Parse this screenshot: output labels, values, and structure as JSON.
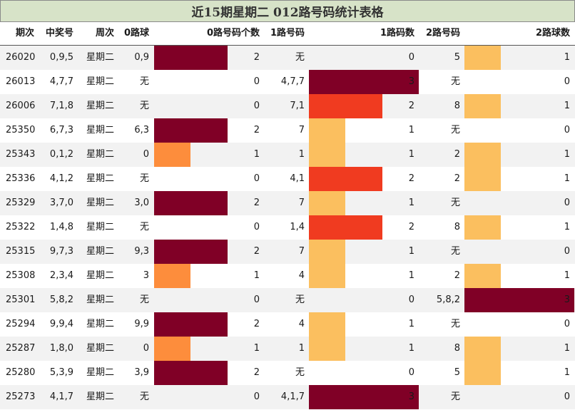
{
  "title": "近15期星期二 012路号码统计表格",
  "headers": [
    "期次",
    "中奖号",
    "周次",
    "0路球",
    "0路号码个数",
    "1路号码",
    "1路码数",
    "2路号码",
    "2路球数"
  ],
  "colors": {
    "count1": "#fbbf5f",
    "count1_orange": "#fd8d3c",
    "count2": "#f03b20",
    "count3": "#800026"
  },
  "chart_data": {
    "type": "table",
    "title": "近15期星期二 012路号码统计表格",
    "columns": [
      "期次",
      "中奖号",
      "周次",
      "0路球",
      "0路号码个数",
      "1路号码",
      "1路码数",
      "2路号码",
      "2路球数"
    ],
    "rows": [
      {
        "period": "26020",
        "numbers": "0,9,5",
        "weekday": "星期二",
        "road0": "0,9",
        "road0_count": 2,
        "road1": "无",
        "road1_count": 0,
        "road2": "5",
        "road2_count": 1
      },
      {
        "period": "26013",
        "numbers": "4,7,7",
        "weekday": "星期二",
        "road0": "无",
        "road0_count": 0,
        "road1": "4,7,7",
        "road1_count": 3,
        "road2": "无",
        "road2_count": 0
      },
      {
        "period": "26006",
        "numbers": "7,1,8",
        "weekday": "星期二",
        "road0": "无",
        "road0_count": 0,
        "road1": "7,1",
        "road1_count": 2,
        "road2": "8",
        "road2_count": 1
      },
      {
        "period": "25350",
        "numbers": "6,7,3",
        "weekday": "星期二",
        "road0": "6,3",
        "road0_count": 2,
        "road1": "7",
        "road1_count": 1,
        "road2": "无",
        "road2_count": 0
      },
      {
        "period": "25343",
        "numbers": "0,1,2",
        "weekday": "星期二",
        "road0": "0",
        "road0_count": 1,
        "road1": "1",
        "road1_count": 1,
        "road2": "2",
        "road2_count": 1
      },
      {
        "period": "25336",
        "numbers": "4,1,2",
        "weekday": "星期二",
        "road0": "无",
        "road0_count": 0,
        "road1": "4,1",
        "road1_count": 2,
        "road2": "2",
        "road2_count": 1
      },
      {
        "period": "25329",
        "numbers": "3,7,0",
        "weekday": "星期二",
        "road0": "3,0",
        "road0_count": 2,
        "road1": "7",
        "road1_count": 1,
        "road2": "无",
        "road2_count": 0
      },
      {
        "period": "25322",
        "numbers": "1,4,8",
        "weekday": "星期二",
        "road0": "无",
        "road0_count": 0,
        "road1": "1,4",
        "road1_count": 2,
        "road2": "8",
        "road2_count": 1
      },
      {
        "period": "25315",
        "numbers": "9,7,3",
        "weekday": "星期二",
        "road0": "9,3",
        "road0_count": 2,
        "road1": "7",
        "road1_count": 1,
        "road2": "无",
        "road2_count": 0
      },
      {
        "period": "25308",
        "numbers": "2,3,4",
        "weekday": "星期二",
        "road0": "3",
        "road0_count": 1,
        "road1": "4",
        "road1_count": 1,
        "road2": "2",
        "road2_count": 1
      },
      {
        "period": "25301",
        "numbers": "5,8,2",
        "weekday": "星期二",
        "road0": "无",
        "road0_count": 0,
        "road1": "无",
        "road1_count": 0,
        "road2": "5,8,2",
        "road2_count": 3
      },
      {
        "period": "25294",
        "numbers": "9,9,4",
        "weekday": "星期二",
        "road0": "9,9",
        "road0_count": 2,
        "road1": "4",
        "road1_count": 1,
        "road2": "无",
        "road2_count": 0
      },
      {
        "period": "25287",
        "numbers": "1,8,0",
        "weekday": "星期二",
        "road0": "0",
        "road0_count": 1,
        "road1": "1",
        "road1_count": 1,
        "road2": "8",
        "road2_count": 1
      },
      {
        "period": "25280",
        "numbers": "5,3,9",
        "weekday": "星期二",
        "road0": "3,9",
        "road0_count": 2,
        "road1": "无",
        "road1_count": 0,
        "road2": "5",
        "road2_count": 1
      },
      {
        "period": "25273",
        "numbers": "4,1,7",
        "weekday": "星期二",
        "road0": "无",
        "road0_count": 0,
        "road1": "4,1,7",
        "road1_count": 3,
        "road2": "无",
        "road2_count": 0
      }
    ],
    "count_max": 3
  }
}
